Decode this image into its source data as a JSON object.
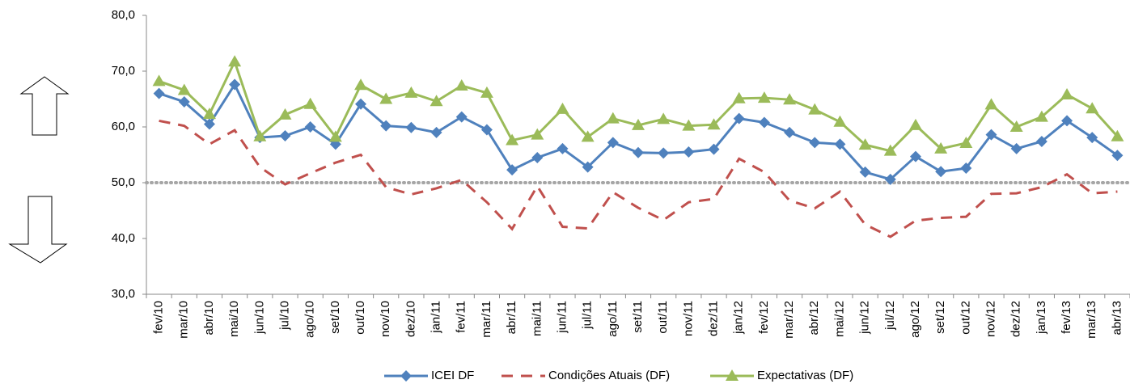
{
  "chart_data": {
    "type": "line",
    "categories": [
      "fev/10",
      "mar/10",
      "abr/10",
      "mai/10",
      "jun/10",
      "jul/10",
      "ago/10",
      "set/10",
      "out/10",
      "nov/10",
      "dez/10",
      "jan/11",
      "fev/11",
      "mar/11",
      "abr/11",
      "mai/11",
      "jun/11",
      "jul/11",
      "ago/11",
      "set/11",
      "out/11",
      "nov/11",
      "dez/11",
      "jan/12",
      "fev/12",
      "mar/12",
      "abr/12",
      "mai/12",
      "jun/12",
      "jul/12",
      "ago/12",
      "set/12",
      "out/12",
      "nov/12",
      "dez/12",
      "jan/13",
      "fev/13",
      "mar/13",
      "abr/13"
    ],
    "series": [
      {
        "name": "ICEI DF",
        "color": "#4f81bd",
        "marker": "diamond",
        "dashed": false,
        "values": [
          66.0,
          64.5,
          60.5,
          67.6,
          58.1,
          58.4,
          60.0,
          56.9,
          64.1,
          60.2,
          59.9,
          59.0,
          61.8,
          59.5,
          52.3,
          54.5,
          56.1,
          52.8,
          57.2,
          55.4,
          55.3,
          55.5,
          56.0,
          61.5,
          60.8,
          59.0,
          57.2,
          56.9,
          51.9,
          50.6,
          54.7,
          52.0,
          52.6,
          58.6,
          56.1,
          57.4,
          61.1,
          58.1,
          54.9
        ]
      },
      {
        "name": "Condições Atuais (DF)",
        "color": "#c0504d",
        "marker": "none",
        "dashed": true,
        "values": [
          61.1,
          60.2,
          56.9,
          59.4,
          52.8,
          49.7,
          51.7,
          53.6,
          55.0,
          49.2,
          47.9,
          49.0,
          50.5,
          46.5,
          41.7,
          49.4,
          42.1,
          41.8,
          48.3,
          45.5,
          43.3,
          46.5,
          47.1,
          54.3,
          51.9,
          46.8,
          45.4,
          48.4,
          42.5,
          40.3,
          43.2,
          43.7,
          43.9,
          48.0,
          48.1,
          49.2,
          51.5,
          48.1,
          48.4
        ]
      },
      {
        "name": "Expectativas (DF)",
        "color": "#9bbb59",
        "marker": "triangle",
        "dashed": false,
        "values": [
          68.2,
          66.6,
          62.3,
          71.7,
          58.3,
          62.2,
          64.1,
          58.2,
          67.5,
          65.0,
          66.1,
          64.6,
          67.4,
          66.1,
          57.6,
          58.6,
          63.2,
          58.2,
          61.5,
          60.3,
          61.4,
          60.2,
          60.4,
          65.1,
          65.2,
          64.9,
          63.1,
          60.9,
          56.8,
          55.7,
          60.3,
          56.1,
          57.1,
          64.0,
          60.0,
          61.8,
          65.8,
          63.3,
          58.3
        ]
      }
    ],
    "ylim": [
      30,
      80
    ],
    "yticks": [
      {
        "value": 30,
        "label": "30,0"
      },
      {
        "value": 40,
        "label": "40,0"
      },
      {
        "value": 50,
        "label": "50,0"
      },
      {
        "value": 60,
        "label": "60,0"
      },
      {
        "value": 70,
        "label": "70,0"
      },
      {
        "value": 80,
        "label": "80,0"
      }
    ],
    "reference_line": 50,
    "legend": "bottom"
  }
}
